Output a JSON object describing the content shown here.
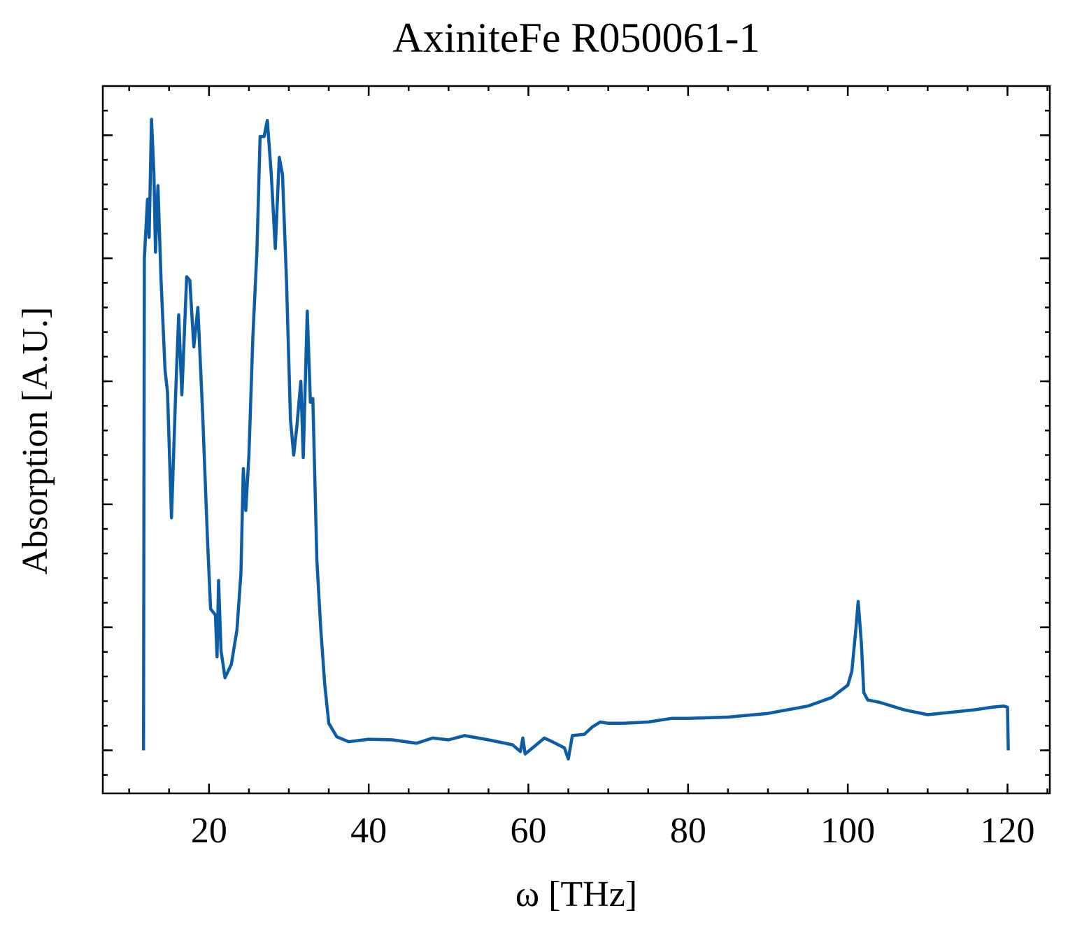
{
  "chart_data": {
    "type": "line",
    "title": "AxiniteFe R050061-1",
    "xlabel": "ω [THz]",
    "ylabel": "Absorption [A.U.]",
    "xlim": [
      6.7,
      125.3
    ],
    "xticks": [
      20,
      40,
      60,
      80,
      100,
      120
    ],
    "ylim": [
      -0.35,
      5.4
    ],
    "yticks": [
      0,
      1,
      2,
      3,
      4,
      5
    ],
    "series": [
      {
        "color": "#0c5da5",
        "x": [
          11.8,
          11.9,
          12.3,
          12.5,
          12.8,
          13.1,
          13.3,
          13.6,
          14.0,
          14.5,
          14.8,
          15.3,
          15.8,
          16.2,
          16.6,
          17.2,
          17.6,
          18.1,
          18.6,
          19.2,
          19.8,
          20.2,
          20.8,
          21.0,
          21.2,
          21.5,
          22.0,
          22.8,
          23.5,
          24.0,
          24.3,
          24.6,
          25.0,
          25.5,
          26.0,
          26.4,
          26.9,
          27.3,
          27.8,
          28.3,
          28.8,
          29.2,
          29.7,
          30.2,
          30.6,
          31.0,
          31.5,
          31.8,
          32.3,
          32.7,
          33.0,
          33.5,
          34.0,
          34.5,
          35.0,
          36.0,
          37.5,
          40,
          43,
          46,
          48,
          50,
          52,
          55,
          58,
          59,
          59.3,
          59.6,
          61,
          62,
          63,
          64.5,
          65,
          65.5,
          67,
          68,
          69,
          70,
          72,
          75,
          78,
          80,
          85,
          90,
          95,
          98,
          100,
          100.5,
          101,
          101.3,
          101.7,
          102,
          102.5,
          104,
          107,
          110,
          113,
          116,
          118,
          119.5,
          120,
          120.1
        ],
        "values": [
          0,
          4.0,
          4.48,
          4.17,
          5.13,
          4.68,
          4.05,
          4.59,
          3.82,
          3.09,
          2.91,
          1.89,
          2.86,
          3.54,
          2.89,
          3.85,
          3.82,
          3.28,
          3.6,
          2.74,
          1.72,
          1.15,
          1.1,
          0.76,
          1.38,
          0.81,
          0.59,
          0.7,
          0.98,
          1.44,
          2.29,
          1.95,
          2.4,
          3.37,
          4.05,
          4.99,
          4.99,
          5.12,
          4.68,
          4.08,
          4.82,
          4.68,
          3.82,
          2.69,
          2.4,
          2.63,
          3.0,
          2.38,
          3.57,
          2.83,
          2.86,
          1.55,
          0.98,
          0.53,
          0.22,
          0.11,
          0.07,
          0.09,
          0.085,
          0.057,
          0.1,
          0.085,
          0.12,
          0.085,
          0.045,
          -0.01,
          0.1,
          -0.03,
          0.045,
          0.1,
          0.07,
          0.02,
          -0.07,
          0.12,
          0.13,
          0.19,
          0.23,
          0.22,
          0.22,
          0.23,
          0.26,
          0.26,
          0.27,
          0.3,
          0.36,
          0.43,
          0.53,
          0.64,
          0.98,
          1.21,
          0.87,
          0.47,
          0.41,
          0.39,
          0.33,
          0.29,
          0.31,
          0.33,
          0.35,
          0.36,
          0.35,
          0
        ]
      }
    ]
  }
}
